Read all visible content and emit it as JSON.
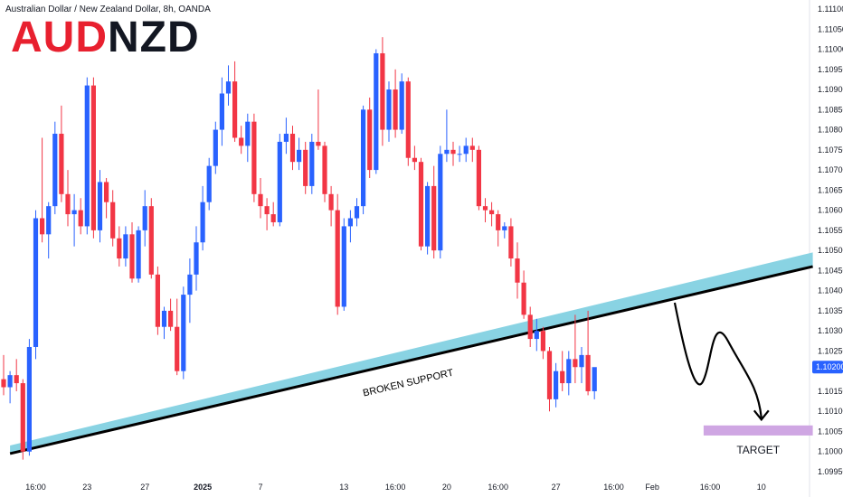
{
  "header": {
    "symbol_title": "Australian Dollar / New Zealand Dollar, 8h, OANDA",
    "logo_part1": "AUD",
    "logo_part2": "NZD"
  },
  "colors": {
    "up": "#2962ff",
    "down": "#f23645",
    "channel": "#89d3e3",
    "target_zone": "#cfa6e3",
    "price_tag": "#2962ff"
  },
  "chart_data": {
    "type": "candlestick",
    "title": "",
    "ylim": [
      1.0995,
      1.111
    ],
    "y_ticks": [
      1.1,
      1.1005,
      1.101,
      1.1015,
      1.1025,
      1.103,
      1.1035,
      1.104,
      1.1045,
      1.105,
      1.1055,
      1.106,
      1.1065,
      1.107,
      1.1075,
      1.108,
      1.1085,
      1.109,
      1.1095,
      1.11,
      1.1105,
      1.111
    ],
    "y_tick_labels": [
      "1.10000",
      "1.10050",
      "1.10100",
      "1.10150",
      "1.10250",
      "1.10300",
      "1.10350",
      "1.10400",
      "1.10450",
      "1.10500",
      "1.10550",
      "1.10600",
      "1.10650",
      "1.10700",
      "1.10750",
      "1.10800",
      "1.10850",
      "1.10900",
      "1.10950",
      "1.11000",
      "1.11050",
      "1.11100"
    ],
    "y_bottom_label": "1.09950",
    "last_price": "1.10200",
    "x_ticks": [
      {
        "index": 5,
        "label": "16:00",
        "bold": false
      },
      {
        "index": 13,
        "label": "23",
        "bold": false
      },
      {
        "index": 22,
        "label": "27",
        "bold": false
      },
      {
        "index": 31,
        "label": "2025",
        "bold": true
      },
      {
        "index": 40,
        "label": "7",
        "bold": false
      },
      {
        "index": 53,
        "label": "13",
        "bold": false
      },
      {
        "index": 61,
        "label": "16:00",
        "bold": false
      },
      {
        "index": 69,
        "label": "20",
        "bold": false
      },
      {
        "index": 77,
        "label": "16:00",
        "bold": false
      },
      {
        "index": 86,
        "label": "27",
        "bold": false
      },
      {
        "index": 95,
        "label": "16:00",
        "bold": false
      },
      {
        "index": 101,
        "label": "Feb",
        "bold": false
      },
      {
        "index": 110,
        "label": "16:00",
        "bold": false
      },
      {
        "index": 118,
        "label": "10",
        "bold": false
      }
    ],
    "candles": [
      [
        1.1018,
        1.1024,
        1.1014,
        1.1016
      ],
      [
        1.1016,
        1.102,
        1.1012,
        1.1019
      ],
      [
        1.1019,
        1.1023,
        1.1015,
        1.1017
      ],
      [
        1.1017,
        1.1018,
        1.0998,
        1.1
      ],
      [
        1.1,
        1.1028,
        1.0999,
        1.1026
      ],
      [
        1.1026,
        1.106,
        1.1023,
        1.1058
      ],
      [
        1.1058,
        1.1078,
        1.1052,
        1.1054
      ],
      [
        1.1054,
        1.1062,
        1.1048,
        1.1061
      ],
      [
        1.1061,
        1.1082,
        1.1059,
        1.1079
      ],
      [
        1.1079,
        1.1086,
        1.1062,
        1.1064
      ],
      [
        1.1064,
        1.107,
        1.1056,
        1.1059
      ],
      [
        1.1059,
        1.1064,
        1.1051,
        1.106
      ],
      [
        1.106,
        1.1063,
        1.1054,
        1.1056
      ],
      [
        1.1056,
        1.1093,
        1.1054,
        1.1091
      ],
      [
        1.1091,
        1.1093,
        1.1053,
        1.1055
      ],
      [
        1.1055,
        1.107,
        1.1052,
        1.1067
      ],
      [
        1.1067,
        1.1068,
        1.1058,
        1.1062
      ],
      [
        1.1062,
        1.1065,
        1.1051,
        1.1053
      ],
      [
        1.1053,
        1.1056,
        1.1046,
        1.1048
      ],
      [
        1.1048,
        1.1056,
        1.1046,
        1.1054
      ],
      [
        1.1054,
        1.1057,
        1.1042,
        1.1043
      ],
      [
        1.1043,
        1.1056,
        1.1042,
        1.1055
      ],
      [
        1.1055,
        1.1065,
        1.1051,
        1.1061
      ],
      [
        1.1061,
        1.1063,
        1.1043,
        1.1044
      ],
      [
        1.1044,
        1.1046,
        1.1029,
        1.1031
      ],
      [
        1.1031,
        1.1036,
        1.1028,
        1.1035
      ],
      [
        1.1035,
        1.1038,
        1.103,
        1.1031
      ],
      [
        1.1031,
        1.1038,
        1.1019,
        1.102
      ],
      [
        1.102,
        1.1041,
        1.1018,
        1.1039
      ],
      [
        1.1039,
        1.1048,
        1.1032,
        1.1044
      ],
      [
        1.1044,
        1.1056,
        1.104,
        1.1052
      ],
      [
        1.1052,
        1.1066,
        1.105,
        1.1062
      ],
      [
        1.1062,
        1.1073,
        1.106,
        1.1071
      ],
      [
        1.1071,
        1.1082,
        1.1069,
        1.108
      ],
      [
        1.108,
        1.1093,
        1.1076,
        1.1089
      ],
      [
        1.1089,
        1.1096,
        1.1086,
        1.1092
      ],
      [
        1.1092,
        1.1097,
        1.1077,
        1.1078
      ],
      [
        1.1078,
        1.1081,
        1.1074,
        1.1076
      ],
      [
        1.1076,
        1.1084,
        1.1072,
        1.1082
      ],
      [
        1.1082,
        1.1084,
        1.1062,
        1.1064
      ],
      [
        1.1064,
        1.1068,
        1.1058,
        1.1061
      ],
      [
        1.1061,
        1.1063,
        1.1055,
        1.1059
      ],
      [
        1.1059,
        1.1062,
        1.1056,
        1.1057
      ],
      [
        1.1057,
        1.1079,
        1.1056,
        1.1077
      ],
      [
        1.1077,
        1.1083,
        1.1074,
        1.1079
      ],
      [
        1.1079,
        1.1081,
        1.107,
        1.1072
      ],
      [
        1.1072,
        1.1078,
        1.107,
        1.1075
      ],
      [
        1.1075,
        1.1077,
        1.1064,
        1.1066
      ],
      [
        1.1066,
        1.1079,
        1.1064,
        1.1077
      ],
      [
        1.1077,
        1.109,
        1.1075,
        1.1076
      ],
      [
        1.1076,
        1.1077,
        1.1062,
        1.1064
      ],
      [
        1.1064,
        1.1066,
        1.1056,
        1.106
      ],
      [
        1.106,
        1.1064,
        1.1034,
        1.1036
      ],
      [
        1.1036,
        1.1058,
        1.1035,
        1.1056
      ],
      [
        1.1056,
        1.106,
        1.1052,
        1.1058
      ],
      [
        1.1058,
        1.1063,
        1.1056,
        1.1061
      ],
      [
        1.1061,
        1.1086,
        1.1059,
        1.1085
      ],
      [
        1.1085,
        1.1088,
        1.1068,
        1.107
      ],
      [
        1.107,
        1.11,
        1.1069,
        1.1099
      ],
      [
        1.1099,
        1.1103,
        1.1076,
        1.108
      ],
      [
        1.108,
        1.1092,
        1.1077,
        1.109
      ],
      [
        1.109,
        1.1095,
        1.1078,
        1.108
      ],
      [
        1.108,
        1.1094,
        1.1079,
        1.1092
      ],
      [
        1.1092,
        1.1093,
        1.1071,
        1.1073
      ],
      [
        1.1073,
        1.1076,
        1.107,
        1.1072
      ],
      [
        1.1072,
        1.1073,
        1.105,
        1.1051
      ],
      [
        1.1051,
        1.1067,
        1.1049,
        1.1066
      ],
      [
        1.1066,
        1.1071,
        1.1048,
        1.105
      ],
      [
        1.105,
        1.1076,
        1.1048,
        1.1074
      ],
      [
        1.1074,
        1.1085,
        1.1072,
        1.1075
      ],
      [
        1.1075,
        1.1077,
        1.1071,
        1.1074
      ],
      [
        1.1074,
        1.1076,
        1.1072,
        1.1074
      ],
      [
        1.1074,
        1.1078,
        1.1072,
        1.1076
      ],
      [
        1.1076,
        1.1078,
        1.1072,
        1.1075
      ],
      [
        1.1075,
        1.1076,
        1.106,
        1.1061
      ],
      [
        1.1061,
        1.1063,
        1.1057,
        1.106
      ],
      [
        1.106,
        1.1062,
        1.1056,
        1.1059
      ],
      [
        1.1059,
        1.106,
        1.1051,
        1.1055
      ],
      [
        1.1055,
        1.1057,
        1.1053,
        1.1056
      ],
      [
        1.1056,
        1.1058,
        1.1046,
        1.1048
      ],
      [
        1.1048,
        1.1052,
        1.1038,
        1.1042
      ],
      [
        1.1042,
        1.1045,
        1.1033,
        1.1034
      ],
      [
        1.1034,
        1.1036,
        1.1026,
        1.1028
      ],
      [
        1.1028,
        1.1033,
        1.1025,
        1.103
      ],
      [
        1.103,
        1.1031,
        1.1023,
        1.1025
      ],
      [
        1.1025,
        1.1026,
        1.101,
        1.1013
      ],
      [
        1.1013,
        1.1022,
        1.1011,
        1.102
      ],
      [
        1.102,
        1.1025,
        1.1015,
        1.1017
      ],
      [
        1.1017,
        1.1025,
        1.1014,
        1.1023
      ],
      [
        1.1023,
        1.1034,
        1.1017,
        1.1021
      ],
      [
        1.1021,
        1.1026,
        1.1017,
        1.1024
      ],
      [
        1.1024,
        1.1035,
        1.1014,
        1.1015
      ],
      [
        1.1015,
        1.102,
        1.1013,
        1.1021
      ]
    ],
    "support_line": {
      "start": {
        "index": 1,
        "value": 1.09995
      },
      "end": {
        "index": 126,
        "value": 1.1046
      }
    },
    "support_band_top": {
      "start": {
        "index": 1,
        "value": 1.10015
      },
      "end": {
        "index": 126,
        "value": 1.10495
      }
    },
    "annotations": {
      "support_label": "BROKEN SUPPORT",
      "target_label": "TARGET"
    },
    "target_zone": {
      "x_from": 109,
      "x_to": 126,
      "y_from": 1.1004,
      "y_to": 1.10065
    },
    "projection_path": [
      {
        "index": 104.5,
        "value": 1.1037
      },
      {
        "index": 108,
        "value": 1.102
      },
      {
        "index": 112,
        "value": 1.1026
      },
      {
        "index": 116,
        "value": 1.1015
      },
      {
        "index": 118,
        "value": 1.10075
      }
    ]
  }
}
